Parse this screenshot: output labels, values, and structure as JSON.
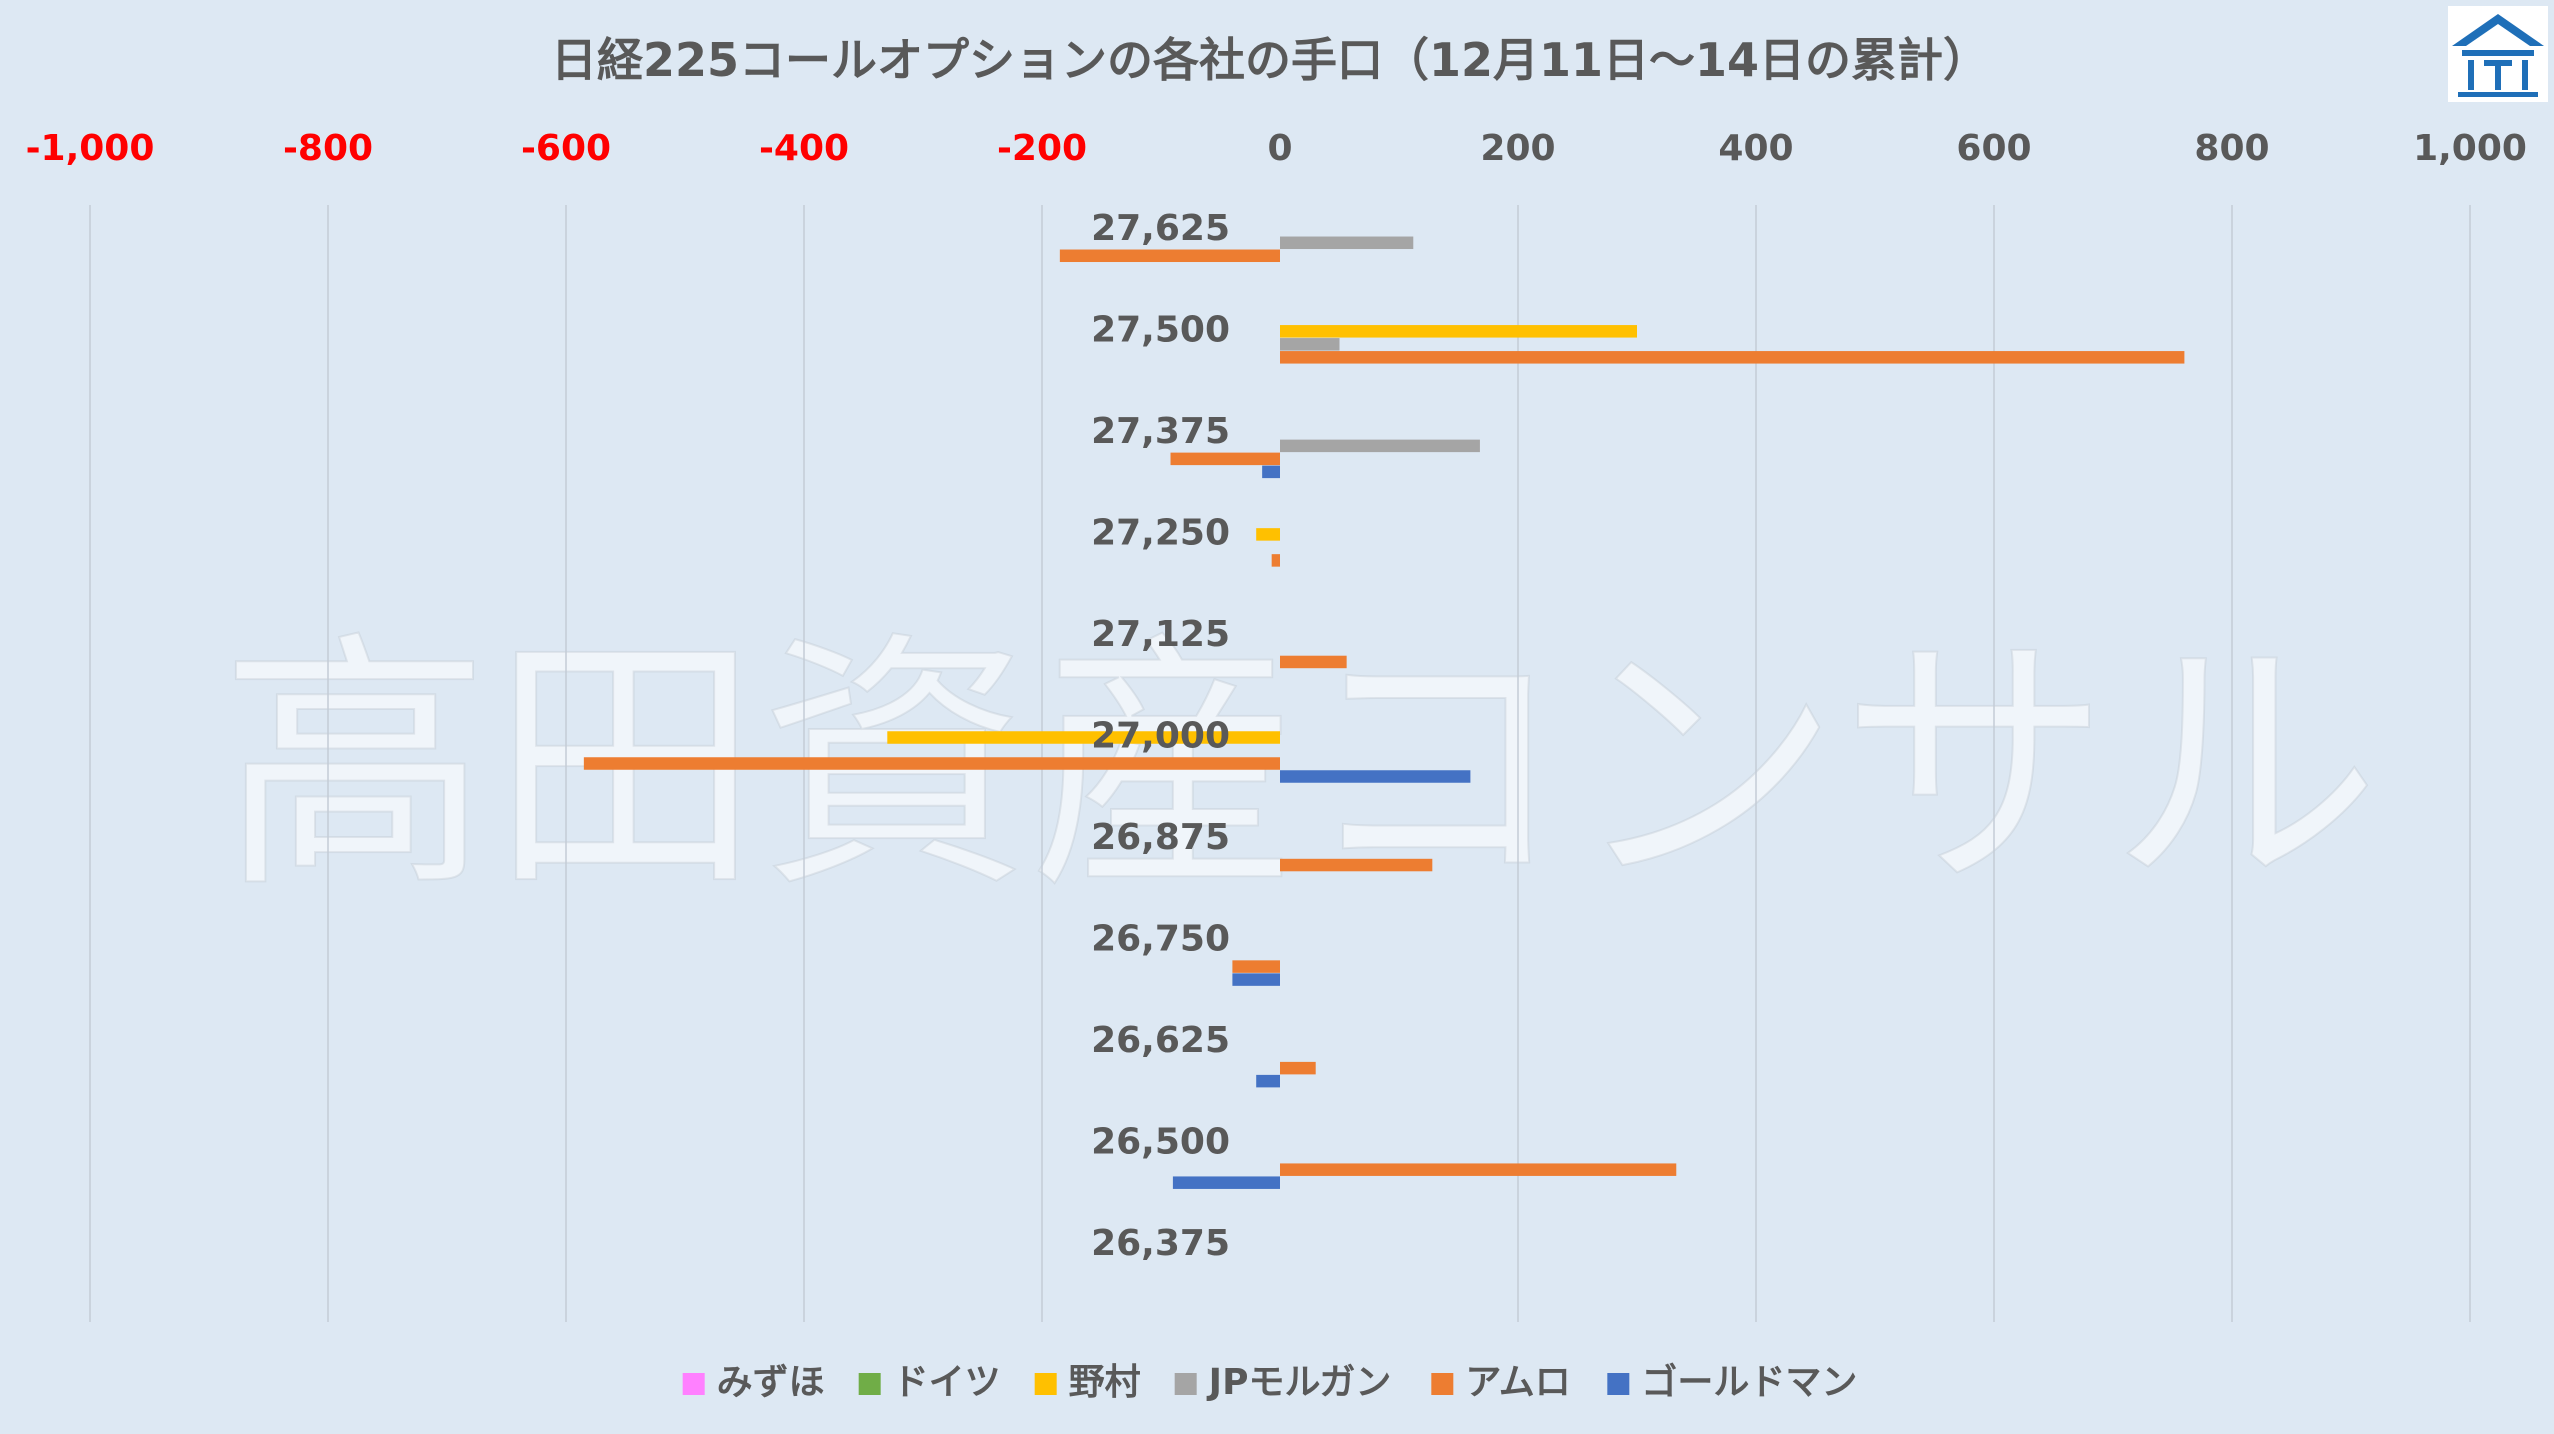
{
  "watermark": "高田資産コンサル",
  "logo_icon": "house-roof-logo-icon",
  "chart_data": {
    "type": "bar",
    "orientation": "horizontal",
    "title": "日経225コールオプションの各社の手口（12月11日～14日の累計）",
    "xlim": [
      -1000,
      1000
    ],
    "x_ticks": [
      -1000,
      -800,
      -600,
      -400,
      -200,
      0,
      200,
      400,
      600,
      800,
      1000
    ],
    "x_tick_labels": [
      "-1,000",
      "-800",
      "-600",
      "-400",
      "-200",
      "0",
      "200",
      "400",
      "600",
      "800",
      "1,000"
    ],
    "negative_tick_color": "#ff0000",
    "positive_tick_color": "#595959",
    "axis_position": "top",
    "grid": true,
    "legend_position": "bottom",
    "categories": [
      "27,625",
      "27,500",
      "27,375",
      "27,250",
      "27,125",
      "27,000",
      "26,875",
      "26,750",
      "26,625",
      "26,500",
      "26,375"
    ],
    "series": [
      {
        "name": "みずほ",
        "color": "#ff80ff",
        "values": [
          0,
          0,
          0,
          0,
          0,
          0,
          0,
          0,
          0,
          0,
          0
        ]
      },
      {
        "name": "ドイツ",
        "color": "#70ad47",
        "values": [
          0,
          0,
          0,
          0,
          0,
          0,
          0,
          0,
          0,
          0,
          0
        ]
      },
      {
        "name": "野村",
        "color": "#ffc000",
        "values": [
          0,
          300,
          0,
          -20,
          0,
          -330,
          0,
          0,
          0,
          0,
          0
        ]
      },
      {
        "name": "JPモルガン",
        "color": "#a5a5a5",
        "values": [
          112,
          50,
          168,
          0,
          0,
          0,
          0,
          0,
          0,
          0,
          0
        ]
      },
      {
        "name": "アムロ",
        "color": "#ed7d31",
        "values": [
          -185,
          760,
          -92,
          -7,
          56,
          -585,
          128,
          -40,
          30,
          333,
          0
        ]
      },
      {
        "name": "ゴールドマン",
        "color": "#4472c4",
        "values": [
          0,
          0,
          -15,
          0,
          0,
          160,
          0,
          -40,
          -20,
          -90,
          0
        ]
      }
    ]
  }
}
